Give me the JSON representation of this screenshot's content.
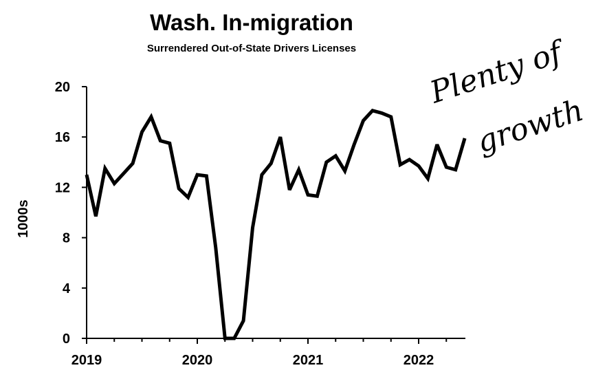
{
  "chart_data": {
    "type": "line",
    "title": "Wash. In-migration",
    "subtitle": "Surrendered Out-of-State Drivers Licenses",
    "xlabel": "",
    "ylabel": "1000s",
    "x_tick_labels": [
      "2019",
      "2020",
      "2021",
      "2022"
    ],
    "y_ticks": [
      0,
      4,
      8,
      12,
      16,
      20
    ],
    "ylim": [
      0,
      20
    ],
    "x_start": "2019-01",
    "x_end": "2022-06",
    "grid": false,
    "legend": "none",
    "series": [
      {
        "color": "#000000",
        "x": [
          "2019-01",
          "2019-02",
          "2019-03",
          "2019-04",
          "2019-05",
          "2019-06",
          "2019-07",
          "2019-08",
          "2019-09",
          "2019-10",
          "2019-11",
          "2019-12",
          "2020-01",
          "2020-02",
          "2020-03",
          "2020-04",
          "2020-05",
          "2020-06",
          "2020-07",
          "2020-08",
          "2020-09",
          "2020-10",
          "2020-11",
          "2020-12",
          "2021-01",
          "2021-02",
          "2021-03",
          "2021-04",
          "2021-05",
          "2021-06",
          "2021-07",
          "2021-08",
          "2021-09",
          "2021-10",
          "2021-11",
          "2021-12",
          "2022-01",
          "2022-02",
          "2022-03",
          "2022-04",
          "2022-05",
          "2022-06"
        ],
        "values": [
          13.0,
          9.7,
          13.5,
          12.3,
          13.1,
          13.9,
          16.4,
          17.6,
          15.7,
          15.5,
          11.9,
          11.2,
          13.0,
          12.9,
          7.2,
          0.0,
          0.0,
          1.4,
          8.8,
          13.0,
          13.9,
          16.0,
          11.8,
          13.4,
          11.4,
          11.3,
          14.0,
          14.5,
          13.3,
          15.4,
          17.3,
          18.1,
          17.9,
          17.6,
          13.8,
          14.2,
          13.7,
          12.7,
          15.4,
          13.6,
          13.4,
          15.9
        ]
      }
    ],
    "annotations": [
      "Plenty of growth"
    ]
  }
}
